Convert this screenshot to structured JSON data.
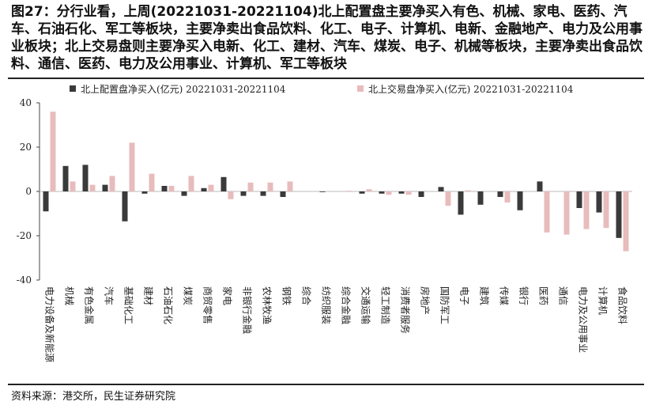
{
  "chart_data": {
    "type": "bar",
    "title": "图27：分行业看，上周(20221031-20221104)北上配置盘主要净买入有色、机械、家电、医药、汽车、石油石化、军工等板块，主要净卖出食品饮料、化工、电子、计算机、电新、金融地产、电力及公用事业板块；北上交易盘则主要净买入电新、化工、建材、汽车、煤炭、电子、机械等板块，主要净卖出食品饮料、通信、医药、电力及公用事业、计算机、军工等板块",
    "source": "资料来源：港交所，民生证券研究院",
    "categories": [
      "电力设备及新能源",
      "机械",
      "有色金属",
      "汽车",
      "基础化工",
      "建材",
      "石油石化",
      "煤炭",
      "商贸零售",
      "家电",
      "非银行金融",
      "农林牧渔",
      "钢铁",
      "综合",
      "纺织服装",
      "综合金融",
      "交通运输",
      "轻工制造",
      "消费者服务",
      "房地产",
      "国防军工",
      "电子",
      "建筑",
      "传媒",
      "银行",
      "医药",
      "通信",
      "电力及公用事业",
      "计算机",
      "食品饮料"
    ],
    "series": [
      {
        "name": "北上配置盘净买入(亿元) 20221031-20221104",
        "color": "#3a3a3a",
        "values": [
          -9,
          11.5,
          12,
          3,
          -13.5,
          -1,
          2.5,
          -2,
          1.5,
          6.5,
          -2,
          -2,
          -2.5,
          0,
          -0.3,
          0,
          -1,
          -1,
          -1,
          -2.5,
          2,
          -10.5,
          -6,
          -2.5,
          -8.5,
          4.5,
          0,
          -7.5,
          -9.5,
          -21
        ]
      },
      {
        "name": "北上交易盘净买入(亿元) 20221031-20221104",
        "color": "#e8bcbc",
        "values": [
          36,
          4.5,
          3,
          7,
          22,
          8,
          2.5,
          7,
          3,
          -3.5,
          4,
          4,
          4.5,
          0,
          0,
          0.3,
          1,
          -1.5,
          -1.5,
          0,
          -6.5,
          0.5,
          0,
          -5,
          0,
          -18.5,
          -19.5,
          -17,
          -16.5,
          -27
        ]
      }
    ],
    "ylim": [
      -40,
      40
    ],
    "yticks": [
      40,
      20,
      0,
      -20,
      -40
    ],
    "grid": false
  }
}
